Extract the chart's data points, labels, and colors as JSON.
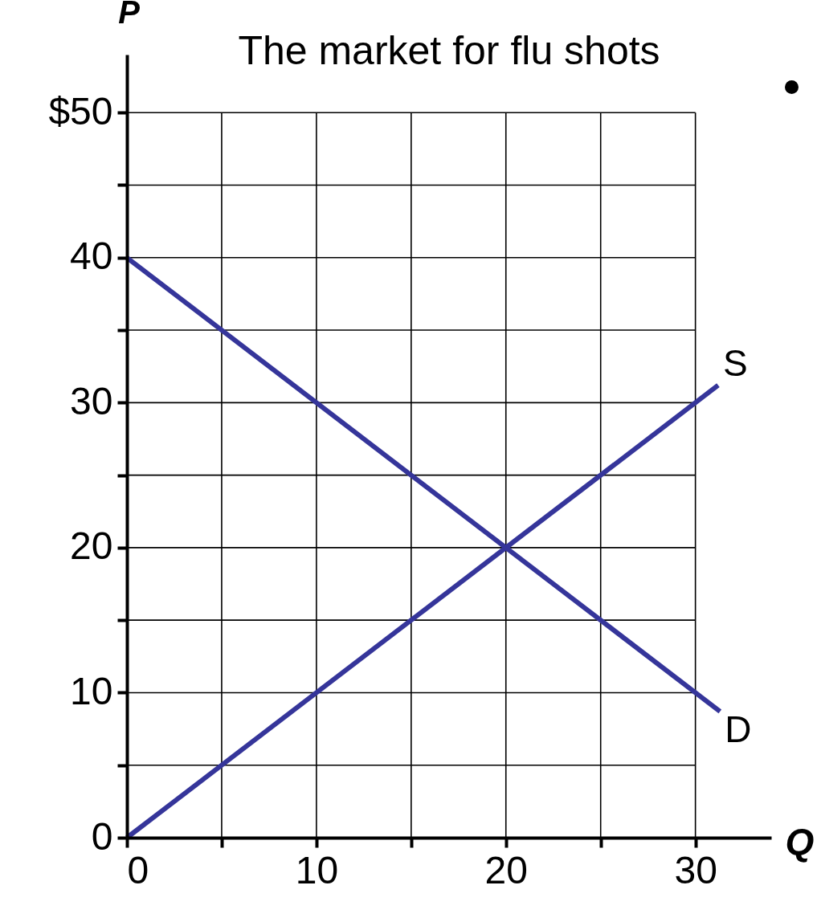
{
  "chart_data": {
    "type": "line",
    "title": "The market for flu shots",
    "xlabel": "Q",
    "ylabel": "P",
    "xlim": [
      0,
      34
    ],
    "ylim": [
      0,
      54
    ],
    "xticks": [
      0,
      {
        "value": 5,
        "label": null
      },
      10,
      {
        "value": 15,
        "label": null
      },
      20,
      {
        "value": 25,
        "label": null
      },
      30
    ],
    "yticks": [
      0,
      {
        "value": 5,
        "label": null
      },
      10,
      {
        "value": 15,
        "label": null
      },
      20,
      {
        "value": 25,
        "label": null
      },
      30,
      {
        "value": 35,
        "label": null
      },
      40,
      {
        "value": 45,
        "label": null
      },
      {
        "value": 50,
        "label": "$50"
      }
    ],
    "grid": true,
    "marker": "none",
    "line_style": "solid",
    "series": [
      {
        "name": "S",
        "color": "#35359a",
        "x": [
          0,
          31.2
        ],
        "values": [
          0,
          31.2
        ]
      },
      {
        "name": "D",
        "color": "#35359a",
        "x": [
          0,
          31.3
        ],
        "values": [
          40,
          8.7
        ]
      }
    ]
  }
}
